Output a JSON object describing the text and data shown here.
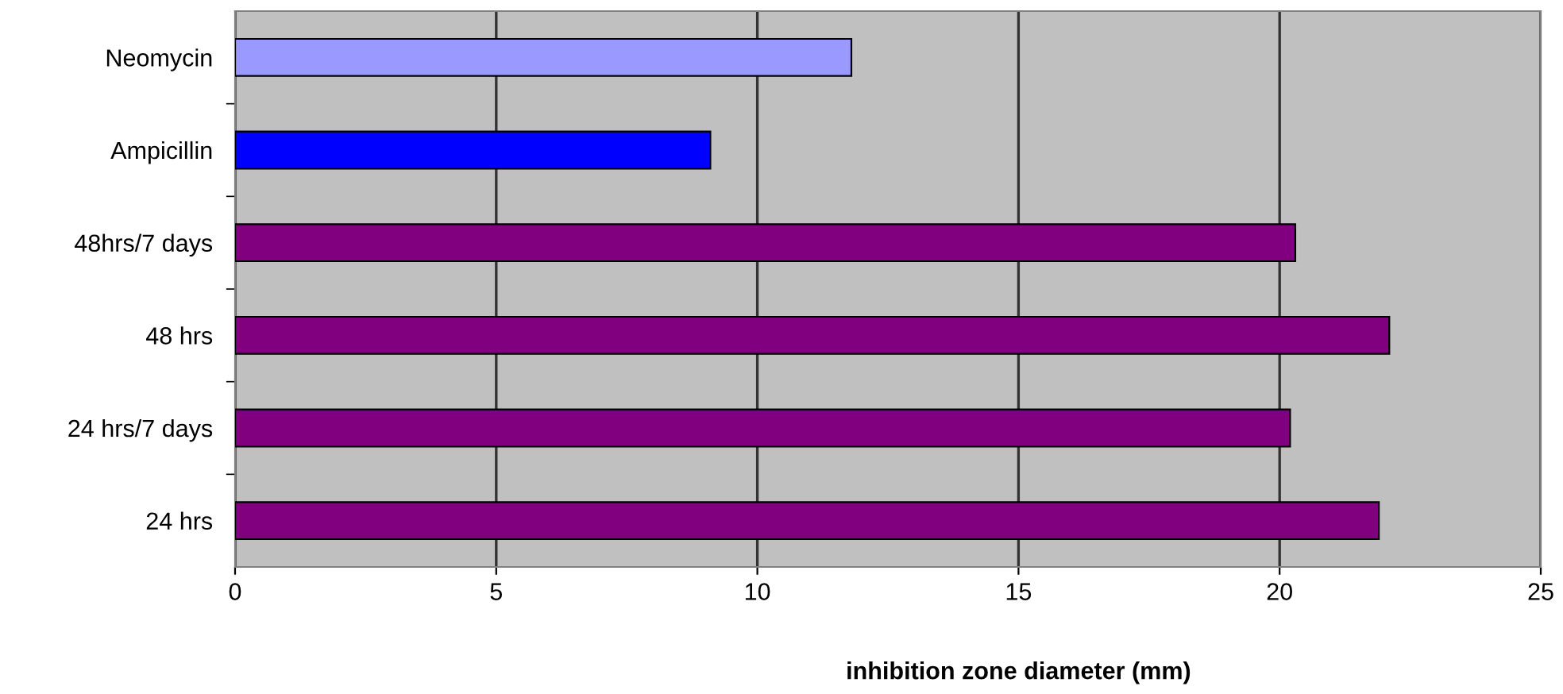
{
  "chart_data": {
    "type": "bar",
    "orientation": "horizontal",
    "xlabel": "inhibition zone diameter (mm)",
    "categories": [
      "Neomycin",
      "Ampicillin",
      "48hrs/7 days",
      "48 hrs",
      "24 hrs/7 days",
      "24 hrs"
    ],
    "values": [
      11.8,
      9.1,
      20.3,
      22.1,
      20.2,
      21.9
    ],
    "colors": [
      "#9999ff",
      "#0000ff",
      "#800080",
      "#800080",
      "#800080",
      "#800080"
    ],
    "xlim": [
      0,
      25
    ],
    "xticks": [
      0,
      5,
      10,
      15,
      20,
      25
    ],
    "grid": "x"
  }
}
